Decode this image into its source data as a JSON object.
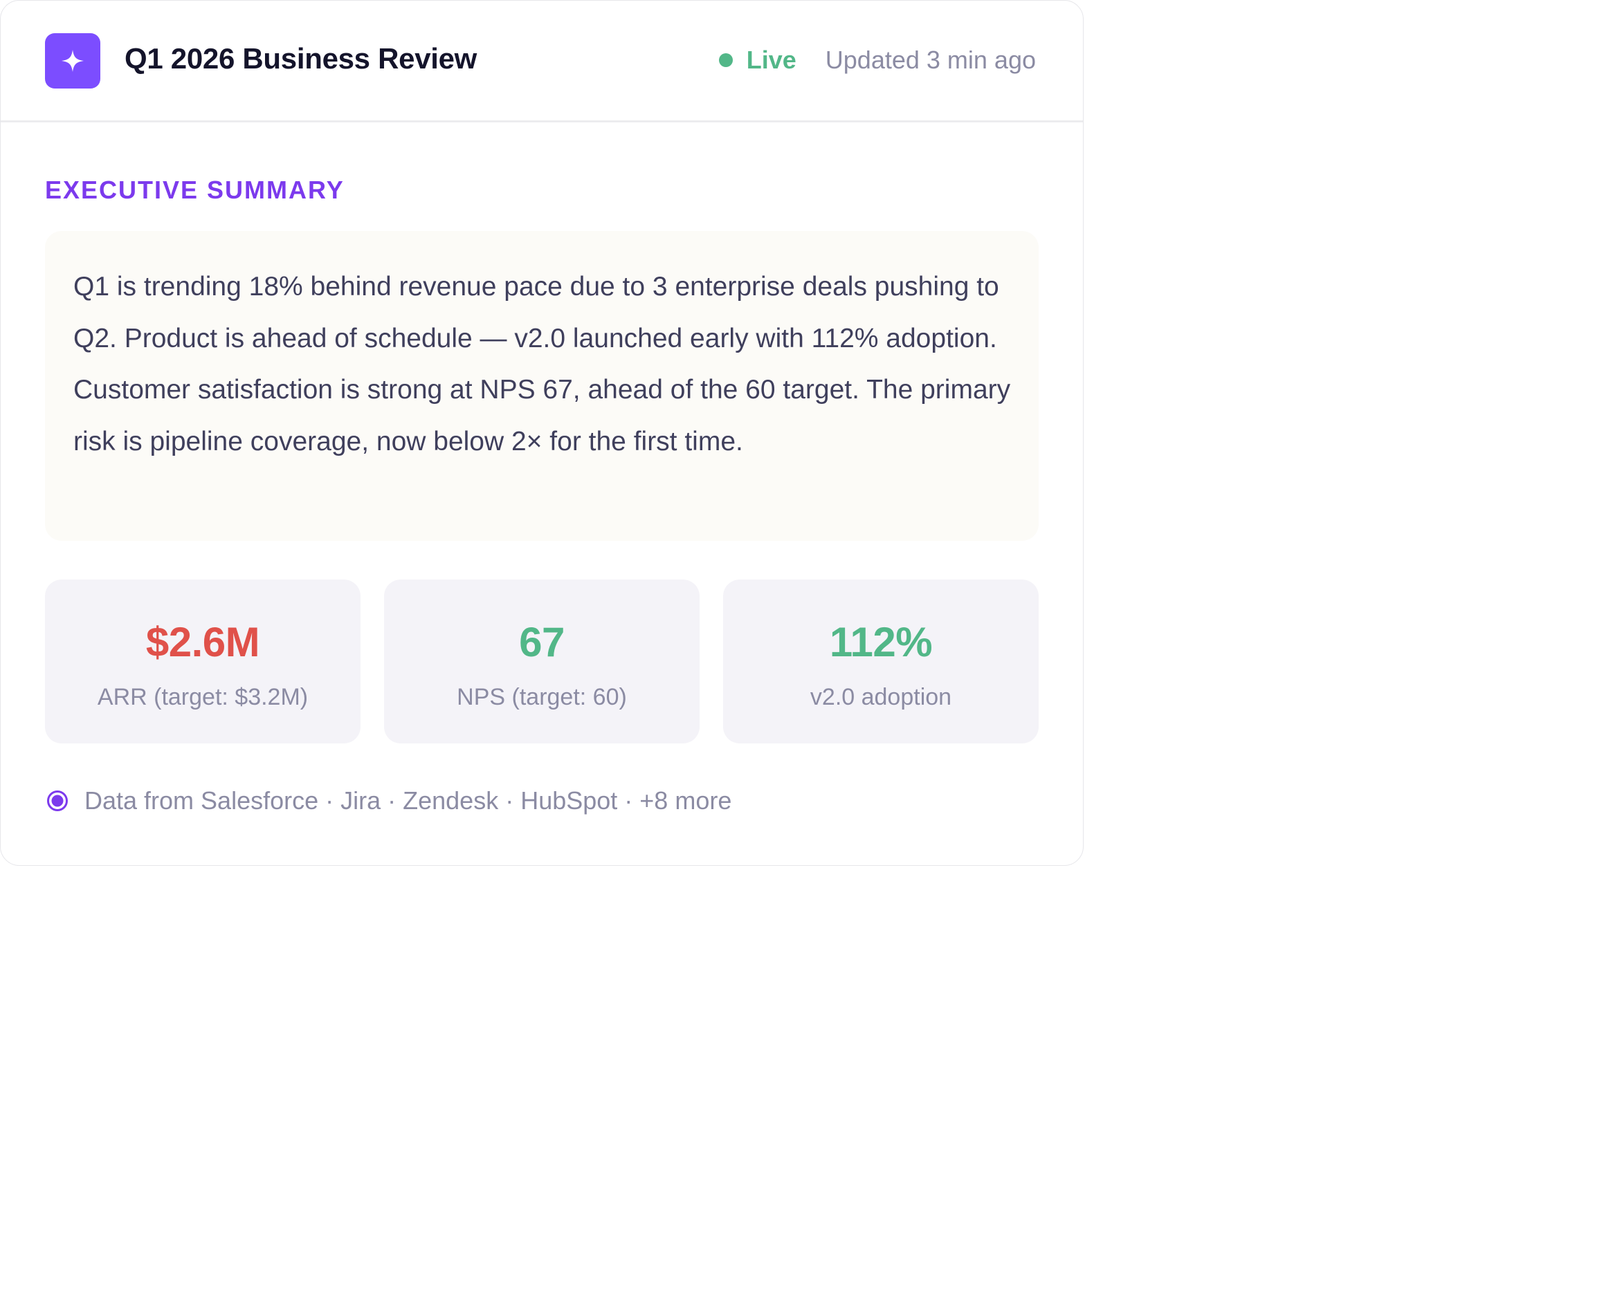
{
  "header": {
    "icon": "sparkle-icon",
    "title": "Q1 2026 Business Review",
    "status_label": "Live",
    "updated_text": "Updated 3 min ago"
  },
  "summary": {
    "section_label": "EXECUTIVE SUMMARY",
    "text": "Q1 is trending 18% behind revenue pace due to 3 enterprise deals pushing to Q2. Product is ahead of schedule — v2.0 launched early with 112% adoption. Customer satisfaction is strong at NPS 67, ahead of the 60 target. The primary risk is pipeline coverage, now below 2× for the first time."
  },
  "metrics": [
    {
      "value": "$2.6M",
      "label": "ARR (target: $3.2M)",
      "color": "#e0514a"
    },
    {
      "value": "67",
      "label": "NPS (target: 60)",
      "color": "#52b788"
    },
    {
      "value": "112%",
      "label": "v2.0 adoption",
      "color": "#52b788"
    }
  ],
  "footer": {
    "icon": "data-source-icon",
    "text": "Data from Salesforce · Jira · Zendesk · HubSpot · +8 more"
  },
  "colors": {
    "accent": "#7c3aed",
    "icon_bg": "#7c4dff",
    "live": "#52b788",
    "negative": "#e0514a",
    "positive": "#52b788"
  }
}
